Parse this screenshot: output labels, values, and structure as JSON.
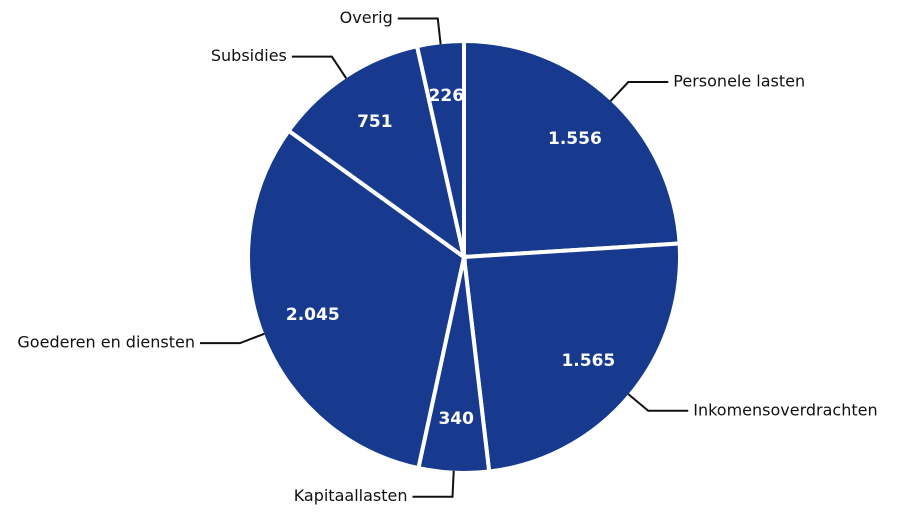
{
  "chart_data": {
    "type": "pie",
    "categories": [
      "Personele lasten",
      "Inkomensoverdrachten",
      "Kapitaallasten",
      "Goederen en diensten",
      "Subsidies",
      "Overig"
    ],
    "values": [
      1556,
      1565,
      340,
      2045,
      751,
      226
    ],
    "value_labels": [
      "1.556",
      "1.565",
      "340",
      "2.045",
      "751",
      "226"
    ],
    "color": "#173a8f"
  }
}
